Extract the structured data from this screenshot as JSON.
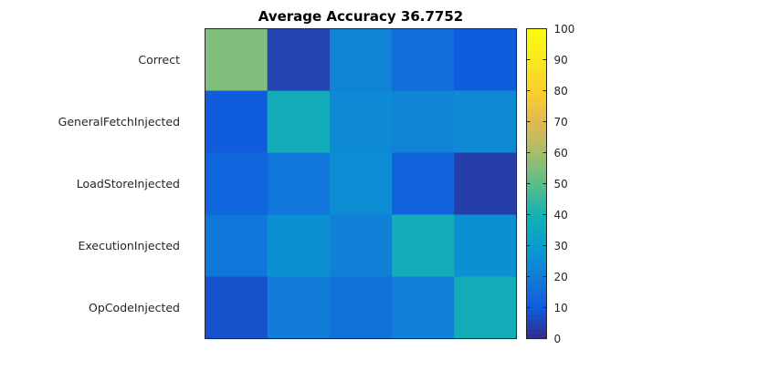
{
  "chart_data": {
    "type": "heatmap",
    "title": "Average Accuracy 36.7752",
    "y_categories": [
      "Correct",
      "GeneralFetchInjected",
      "LoadStoreInjected",
      "ExecutionInjected",
      "OpCodeInjected"
    ],
    "values": [
      [
        55,
        5,
        22,
        15,
        10
      ],
      [
        10,
        38,
        24,
        22,
        24
      ],
      [
        13,
        18,
        25,
        12,
        4
      ],
      [
        18,
        26,
        21,
        38,
        26
      ],
      [
        8,
        20,
        17,
        21,
        38
      ]
    ],
    "colorbar": {
      "range": [
        0,
        100
      ],
      "ticks": [
        0,
        10,
        20,
        30,
        40,
        50,
        60,
        70,
        80,
        90,
        100
      ],
      "colormap": "parula"
    }
  }
}
